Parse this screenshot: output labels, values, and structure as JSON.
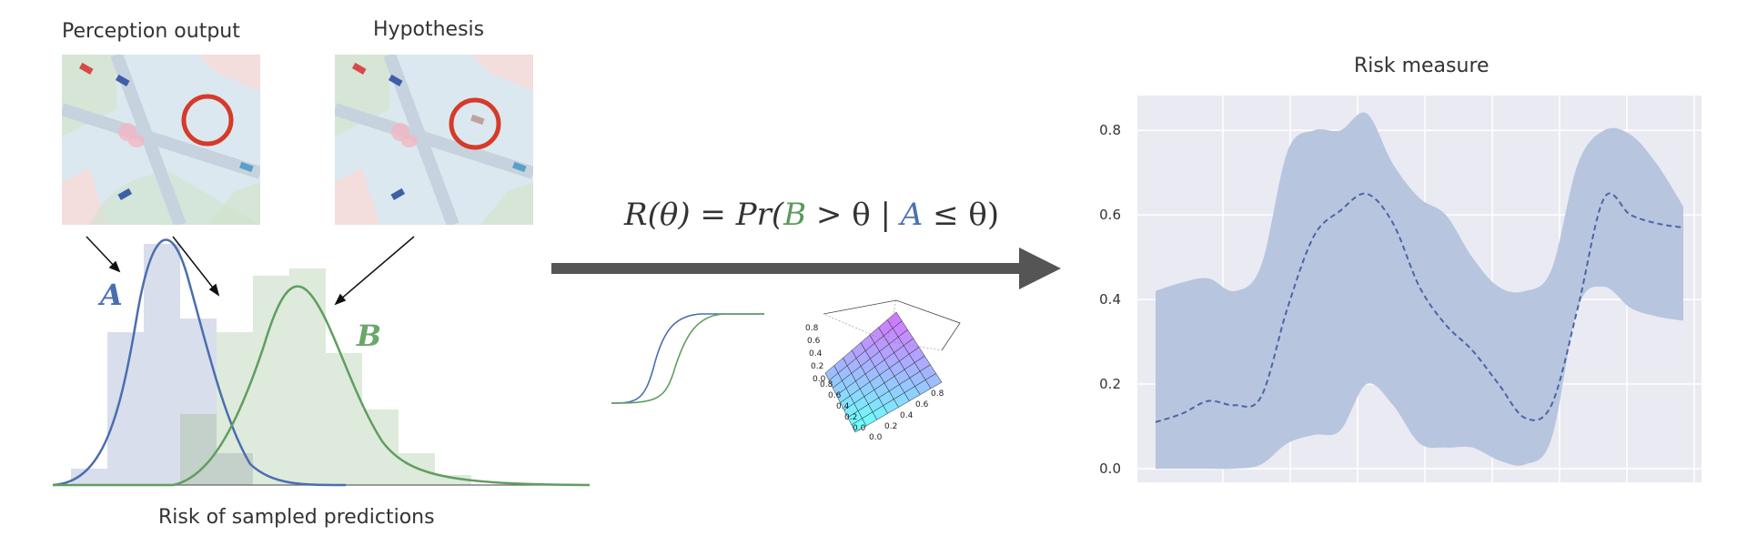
{
  "left_panel": {
    "perception_title": "Perception output",
    "hypothesis_title": "Hypothesis",
    "label_a": "A",
    "label_b": "B",
    "caption": "Risk of sampled predictions"
  },
  "formula": {
    "lhs": "R(θ) = Pr(",
    "b": "B",
    "mid": " > θ | ",
    "a": "A",
    "rhs": " ≤ θ)"
  },
  "surface_plot": {
    "z_ticks": [
      "0.8",
      "0.6",
      "0.4",
      "0.2",
      "0.0"
    ],
    "x_ticks": [
      "0.8",
      "0.6",
      "0.4",
      "0.2",
      "0.0"
    ],
    "y_ticks": [
      "0.0",
      "0.2",
      "0.4",
      "0.6",
      "0.8"
    ]
  },
  "chart_data": {
    "type": "area",
    "title": "Risk measure",
    "xlabel": "",
    "ylabel": "",
    "ylim": [
      0,
      0.85
    ],
    "yticks": [
      "0.0",
      "0.2",
      "0.4",
      "0.6",
      "0.8"
    ],
    "grid": true,
    "x": [
      0,
      0.05,
      0.1,
      0.15,
      0.2,
      0.25,
      0.3,
      0.35,
      0.4,
      0.45,
      0.5,
      0.55,
      0.6,
      0.65,
      0.7,
      0.75,
      0.8,
      0.85,
      0.9,
      0.95,
      1.0
    ],
    "mean": [
      0.11,
      0.13,
      0.16,
      0.15,
      0.17,
      0.38,
      0.55,
      0.61,
      0.65,
      0.58,
      0.43,
      0.34,
      0.28,
      0.2,
      0.12,
      0.15,
      0.38,
      0.64,
      0.6,
      0.58,
      0.57
    ],
    "upper": [
      0.42,
      0.44,
      0.45,
      0.42,
      0.48,
      0.75,
      0.8,
      0.8,
      0.84,
      0.72,
      0.64,
      0.6,
      0.5,
      0.43,
      0.42,
      0.47,
      0.72,
      0.8,
      0.79,
      0.72,
      0.62
    ],
    "lower": [
      0.0,
      0.0,
      0.0,
      0.0,
      0.01,
      0.06,
      0.08,
      0.09,
      0.2,
      0.15,
      0.06,
      0.05,
      0.05,
      0.02,
      0.01,
      0.07,
      0.38,
      0.43,
      0.38,
      0.36,
      0.35
    ],
    "colors": {
      "band": "#b8c5de",
      "line": "#4a66a8",
      "bg": "#eaeaf2"
    }
  },
  "colors": {
    "dist_a": "#4a6eb0",
    "dist_b": "#5f9e5f",
    "hist_a": "#d8deeb",
    "hist_b": "#dde9da",
    "arrow": "#555555",
    "circle": "#d63a2a"
  }
}
